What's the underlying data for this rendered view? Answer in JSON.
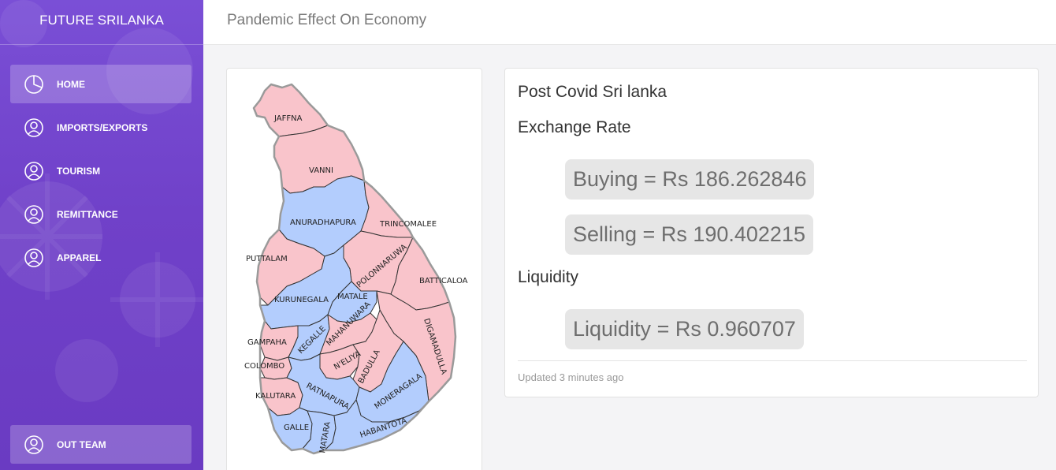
{
  "sidebar": {
    "brand": "FUTURE SRILANKA",
    "items": [
      {
        "label": "HOME"
      },
      {
        "label": "IMPORTS/EXPORTS"
      },
      {
        "label": "TOURISM"
      },
      {
        "label": "REMITTANCE"
      },
      {
        "label": "APPAREL"
      }
    ],
    "footer_item": {
      "label": "OUT TEAM"
    }
  },
  "header": {
    "title": "Pandemic Effect On Economy"
  },
  "info": {
    "heading": "Post Covid Sri lanka",
    "exchange_heading": "Exchange Rate",
    "buying": "Buying = Rs 186.262846",
    "selling": "Selling = Rs 190.402215",
    "liquidity_heading": "Liquidity",
    "liquidity": "Liquidity = Rs 0.960707",
    "updated": "Updated 3 minutes ago"
  },
  "map": {
    "colors": {
      "pink": "#f9c4cb",
      "blue": "#b3cdfd",
      "border": "#333333",
      "outline": "#9a9a9a"
    },
    "districts": {
      "jaffna": "JAFFNA",
      "vanni": "VANNI",
      "anuradhapura": "ANURADHAPURA",
      "trincomalee": "TRINCOMALEE",
      "puttalam": "PUTTALAM",
      "polonnaruwa": "POLONNARUWA",
      "batticaloa": "BATTICALOA",
      "kurunegala": "KURUNEGALA",
      "matale": "MATALE",
      "digamadulla": "DIGAMADULLA",
      "gampaha": "GAMPAHA",
      "kegalle": "KEGALLE",
      "mahanuwara": "MAHANUWARA",
      "colombo": "COLOMBO",
      "nuwara_eliya": "N'ELIYA",
      "badulla": "BADULLA",
      "kalutara": "KALUTARA",
      "ratnapura": "RATNAPURA",
      "moneragala": "MONERAGALA",
      "galle": "GALLE",
      "matara": "MATARA",
      "hambantota": "HABANTOTA"
    }
  }
}
